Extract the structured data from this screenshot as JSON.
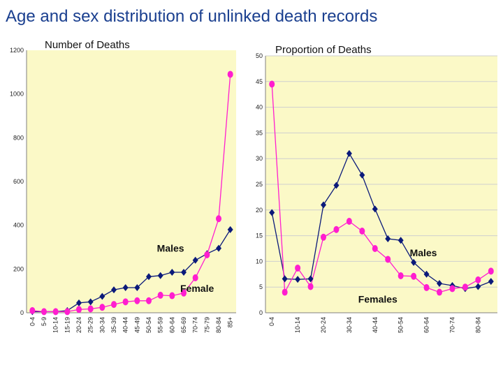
{
  "page": {
    "title": "Age and sex distribution of unlinked death records"
  },
  "colors": {
    "males": "#0b1a7a",
    "females": "#ff1ecf",
    "plot_background": "#fbf9c7"
  },
  "chart_data": [
    {
      "type": "line",
      "title": "Number of Deaths",
      "xlabel": "",
      "ylabel": "",
      "x_tick_labels": [
        "0-4",
        "5-9",
        "10-14",
        "15-19",
        "20-24",
        "25-29",
        "30-34",
        "35-39",
        "40-44",
        "45-49",
        "50-54",
        "55-59",
        "60-64",
        "65-69",
        "70-74",
        "75-79",
        "80-84",
        "85+"
      ],
      "ylim": [
        0,
        1200
      ],
      "y_ticks": [
        0,
        200,
        400,
        600,
        800,
        1000,
        1200
      ],
      "grid": false,
      "series": [
        {
          "name": "Males",
          "marker": "diamond",
          "values": [
            5,
            5,
            5,
            10,
            45,
            50,
            75,
            105,
            115,
            115,
            165,
            170,
            185,
            185,
            240,
            270,
            295,
            380
          ],
          "label_at": [
            11,
            280
          ]
        },
        {
          "name": "Female",
          "marker": "circle",
          "values": [
            10,
            5,
            5,
            5,
            15,
            18,
            25,
            38,
            50,
            55,
            55,
            80,
            78,
            90,
            160,
            265,
            430,
            1090
          ],
          "label_at": [
            13,
            95
          ]
        }
      ]
    },
    {
      "type": "line",
      "title": "Proportion of Deaths",
      "xlabel": "",
      "ylabel": "",
      "x_tick_labels": [
        "0-4",
        "",
        "10-14",
        "",
        "20-24",
        "",
        "30-34",
        "",
        "40-44",
        "",
        "50-54",
        "",
        "60-64",
        "",
        "70-74",
        "",
        "80-84",
        ""
      ],
      "ylim": [
        0,
        50
      ],
      "y_ticks": [
        0,
        5,
        10,
        15,
        20,
        25,
        30,
        35,
        40,
        45,
        50
      ],
      "grid": true,
      "series": [
        {
          "name": "Males",
          "marker": "diamond",
          "values": [
            19.5,
            6.6,
            6.5,
            6.6,
            21.0,
            24.8,
            31.0,
            26.8,
            20.2,
            14.4,
            14.1,
            9.8,
            7.5,
            5.7,
            5.3,
            4.7,
            5.1,
            6.1
          ],
          "label_at": [
            11,
            11
          ]
        },
        {
          "name": "Females",
          "marker": "circle",
          "values": [
            44.5,
            4.0,
            8.7,
            5.1,
            14.7,
            16.2,
            17.8,
            15.9,
            12.5,
            10.4,
            7.2,
            7.1,
            4.9,
            4.0,
            4.7,
            5.0,
            6.4,
            8.1
          ],
          "label_at": [
            7,
            2
          ]
        }
      ]
    }
  ]
}
